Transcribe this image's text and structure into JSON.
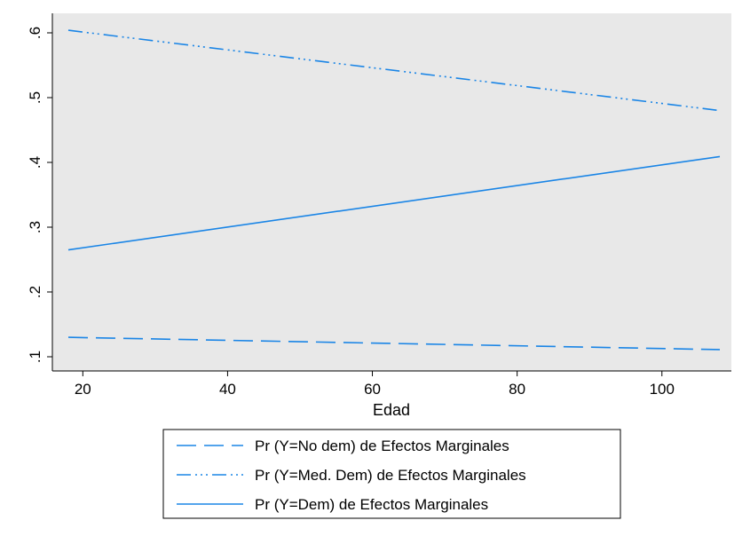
{
  "chart_data": {
    "type": "line",
    "title": "",
    "xlabel": "Edad",
    "ylabel": "",
    "xlim": [
      18,
      108
    ],
    "ylim": [
      0.1,
      0.6
    ],
    "xticks": [
      20,
      40,
      60,
      80,
      100
    ],
    "xtick_labels": [
      "20",
      "40",
      "60",
      "80",
      "100"
    ],
    "yticks": [
      0.1,
      0.2,
      0.3,
      0.4,
      0.5,
      0.6
    ],
    "ytick_labels": [
      ".1",
      ".2",
      ".3",
      ".4",
      ".5",
      ".6"
    ],
    "grid": false,
    "legend_position": "bottom",
    "plot_background": "#e8e8e8",
    "line_color": "#1a85e6",
    "series": [
      {
        "name": "Pr (Y=No dem) de Efectos Marginales",
        "style": "long-dash",
        "x": [
          18,
          108
        ],
        "y": [
          0.13,
          0.111
        ]
      },
      {
        "name": "Pr (Y=Med. Dem) de Efectos Marginales",
        "style": "dash-dot-dot",
        "x": [
          18,
          108
        ],
        "y": [
          0.604,
          0.48
        ]
      },
      {
        "name": "Pr (Y=Dem) de Efectos Marginales",
        "style": "solid",
        "x": [
          18,
          108
        ],
        "y": [
          0.265,
          0.409
        ]
      }
    ]
  }
}
